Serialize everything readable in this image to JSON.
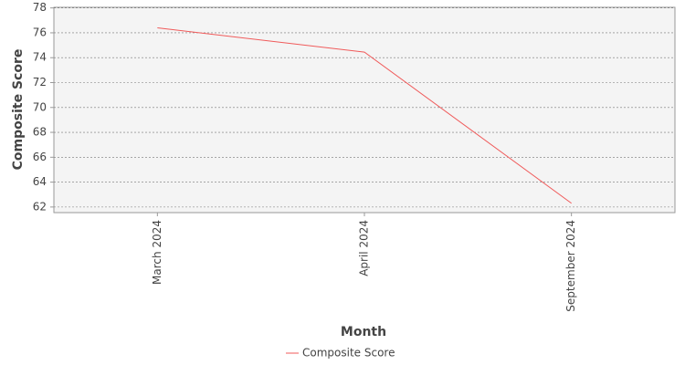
{
  "chart_data": {
    "type": "line",
    "x_label": "Month",
    "y_label": "Composite Score",
    "categories": [
      "March 2024",
      "April 2024",
      "September 2024"
    ],
    "series": [
      {
        "name": "Composite Score",
        "color": "#f05a5a",
        "values": [
          76.4,
          74.45,
          62.3
        ]
      }
    ],
    "ylim": [
      61.55,
      78.05
    ],
    "yticks": [
      62,
      64,
      66,
      68,
      70,
      72,
      74,
      76,
      78
    ],
    "grid": true
  }
}
